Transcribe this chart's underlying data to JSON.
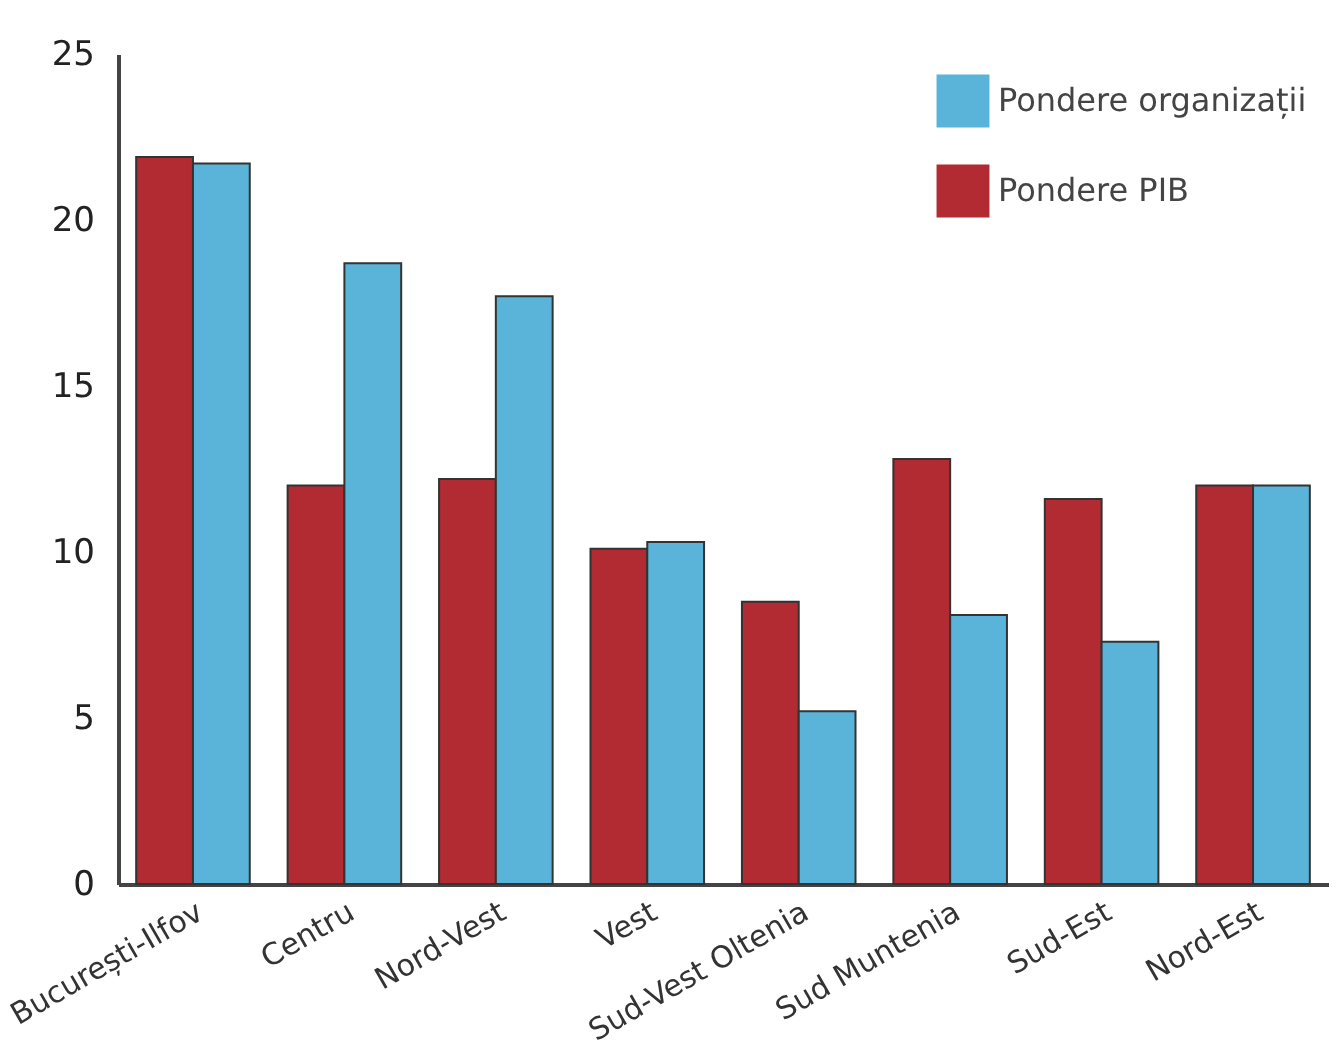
{
  "chart_data": {
    "type": "bar",
    "categories": [
      "București-Ilfov",
      "Centru",
      "Nord-Vest",
      "Vest",
      "Sud-Vest Oltenia",
      "Sud Muntenia",
      "Sud-Est",
      "Nord-Est"
    ],
    "series": [
      {
        "name": "Pondere PIB",
        "color": "#b22a32",
        "values": [
          21.9,
          12.0,
          12.2,
          10.1,
          8.5,
          12.8,
          11.6,
          12.0
        ]
      },
      {
        "name": "Pondere organizații",
        "color": "#5ab4d9",
        "values": [
          21.7,
          18.7,
          17.7,
          10.3,
          5.2,
          8.1,
          7.3,
          12.0
        ]
      }
    ],
    "ylim": [
      0,
      25
    ],
    "yticks": [
      0,
      5,
      10,
      15,
      20,
      25
    ],
    "legend": "top right"
  }
}
